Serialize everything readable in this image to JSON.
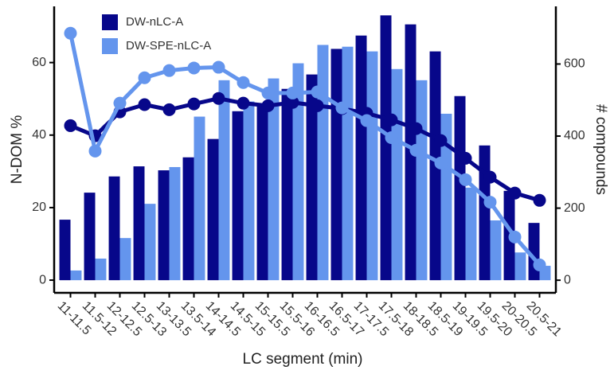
{
  "chart_data": {
    "type": "bar",
    "x_label": "LC segment (min)",
    "y_label": "N-DOM %",
    "y2_label": "# compounds",
    "categories": [
      "11-11.5",
      "11.5-12",
      "12-12.5",
      "12.5-13",
      "13-13.5",
      "13.5-14",
      "14-14.5",
      "14.5-15",
      "15-15.5",
      "15.5-16",
      "16-16.5",
      "16.5-17",
      "17-17.5",
      "17.5-18",
      "18-18.5",
      "18.5-19",
      "19-19.5",
      "19.5-20",
      "20-20.5",
      "20.5-21"
    ],
    "ylim": [
      -3.5,
      75.5
    ],
    "yticks": [
      0,
      20,
      40,
      60
    ],
    "y2lim": [
      -35,
      760
    ],
    "y2ticks": [
      0,
      200,
      400,
      600
    ],
    "legend": "top-left",
    "series": [
      {
        "name": "DW-nLC-A",
        "color": "#07078a",
        "type": "bar",
        "axis": "y2",
        "values": [
          168,
          243,
          288,
          316,
          305,
          341,
          392,
          469,
          487,
          531,
          571,
          642,
          679,
          735,
          710,
          635,
          511,
          374,
          248,
          159
        ]
      },
      {
        "name": "DW-SPE-nLC-A",
        "color": "#6495ed",
        "type": "bar",
        "axis": "y2",
        "values": [
          27,
          60,
          117,
          212,
          314,
          454,
          555,
          496,
          560,
          602,
          653,
          648,
          635,
          586,
          555,
          462,
          257,
          166,
          77,
          40
        ]
      },
      {
        "name": "DW-nLC-A",
        "color": "#07078a",
        "type": "line",
        "values": [
          42.6,
          39.8,
          46.4,
          48.4,
          47.0,
          48.6,
          50.1,
          48.8,
          48.1,
          49.0,
          48.1,
          47.3,
          46.0,
          44.2,
          41.8,
          38.5,
          33.6,
          28.4,
          24.0,
          22.0
        ]
      },
      {
        "name": "DW-SPE-nLC-A",
        "color": "#6495ed",
        "type": "line",
        "values": [
          68.1,
          35.6,
          48.8,
          55.8,
          57.8,
          58.5,
          58.7,
          54.5,
          51.6,
          51.6,
          51.9,
          47.5,
          44.0,
          39.3,
          35.8,
          32.3,
          27.7,
          21.5,
          11.9,
          4.2
        ]
      }
    ]
  }
}
